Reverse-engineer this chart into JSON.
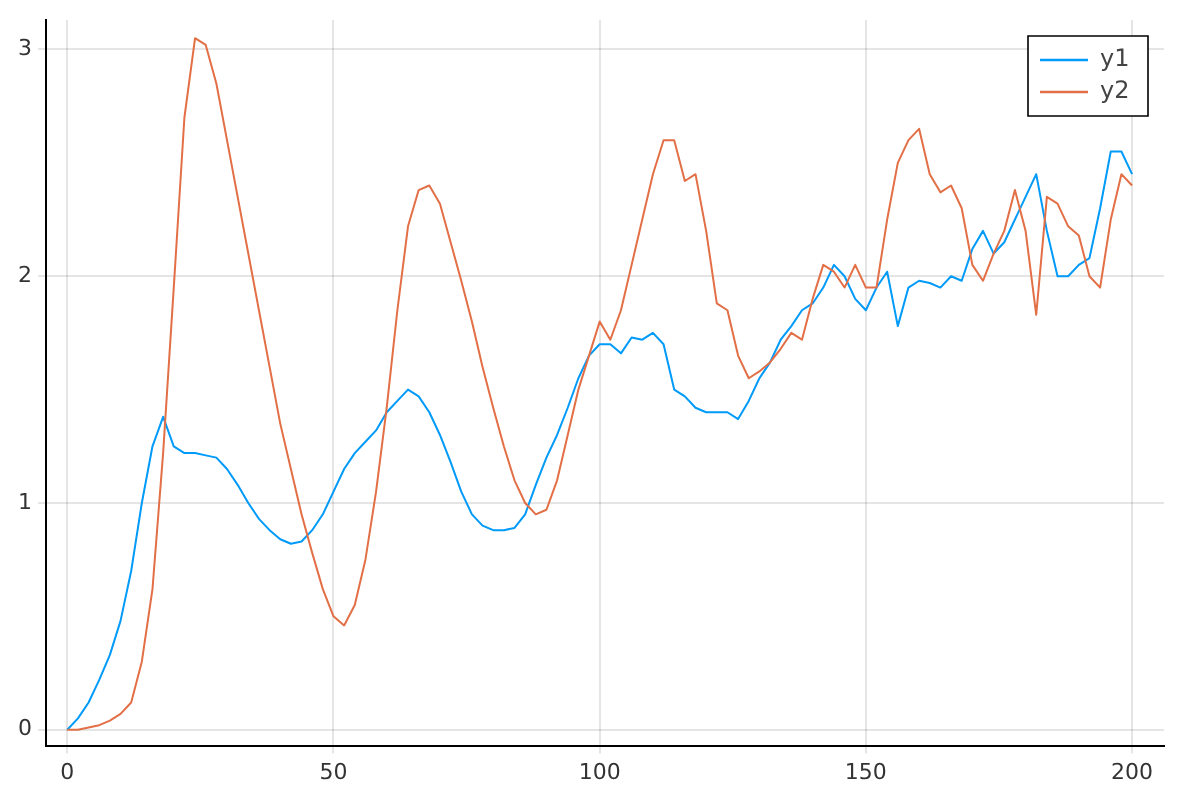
{
  "chart_data": {
    "type": "line",
    "x": [
      0,
      2,
      4,
      6,
      8,
      10,
      12,
      14,
      16,
      18,
      20,
      22,
      24,
      26,
      28,
      30,
      32,
      34,
      36,
      38,
      40,
      42,
      44,
      46,
      48,
      50,
      52,
      54,
      56,
      58,
      60,
      62,
      64,
      66,
      68,
      70,
      72,
      74,
      76,
      78,
      80,
      82,
      84,
      86,
      88,
      90,
      92,
      94,
      96,
      98,
      100,
      102,
      104,
      106,
      108,
      110,
      112,
      114,
      116,
      118,
      120,
      122,
      124,
      126,
      128,
      130,
      132,
      134,
      136,
      138,
      140,
      142,
      144,
      146,
      148,
      150,
      152,
      154,
      156,
      158,
      160,
      162,
      164,
      166,
      168,
      170,
      172,
      174,
      176,
      178,
      180,
      182,
      184,
      186,
      188,
      190,
      192,
      194,
      196,
      198,
      200
    ],
    "series": [
      {
        "name": "y1",
        "color": "#009af9",
        "values": [
          0.0,
          0.05,
          0.12,
          0.22,
          0.33,
          0.48,
          0.7,
          1.0,
          1.25,
          1.38,
          1.25,
          1.22,
          1.22,
          1.21,
          1.2,
          1.15,
          1.08,
          1.0,
          0.93,
          0.88,
          0.84,
          0.82,
          0.83,
          0.88,
          0.95,
          1.05,
          1.15,
          1.22,
          1.27,
          1.32,
          1.4,
          1.45,
          1.5,
          1.47,
          1.4,
          1.3,
          1.18,
          1.05,
          0.95,
          0.9,
          0.88,
          0.88,
          0.89,
          0.95,
          1.08,
          1.2,
          1.3,
          1.42,
          1.55,
          1.65,
          1.7,
          1.7,
          1.66,
          1.73,
          1.72,
          1.75,
          1.7,
          1.5,
          1.47,
          1.42,
          1.4,
          1.4,
          1.4,
          1.37,
          1.45,
          1.55,
          1.62,
          1.72,
          1.78,
          1.85,
          1.88,
          1.95,
          2.05,
          2.0,
          1.9,
          1.85,
          1.95,
          2.02,
          1.78,
          1.95,
          1.98,
          1.97,
          1.95,
          2.0,
          1.98,
          2.12,
          2.2,
          2.1,
          2.15,
          2.25,
          2.35,
          2.45,
          2.2,
          2.0,
          2.0,
          2.05,
          2.08,
          2.3,
          2.55,
          2.55,
          2.45
        ]
      },
      {
        "name": "y2",
        "color": "#e26f46",
        "values": [
          0.0,
          0.0,
          0.01,
          0.02,
          0.04,
          0.07,
          0.12,
          0.3,
          0.62,
          1.22,
          1.95,
          2.7,
          3.05,
          3.02,
          2.85,
          2.6,
          2.35,
          2.1,
          1.85,
          1.6,
          1.35,
          1.15,
          0.95,
          0.78,
          0.62,
          0.5,
          0.46,
          0.55,
          0.75,
          1.05,
          1.42,
          1.85,
          2.22,
          2.38,
          2.4,
          2.32,
          2.15,
          1.98,
          1.8,
          1.6,
          1.42,
          1.25,
          1.1,
          1.0,
          0.95,
          0.97,
          1.1,
          1.3,
          1.5,
          1.65,
          1.8,
          1.72,
          1.85,
          2.05,
          2.25,
          2.45,
          2.6,
          2.6,
          2.42,
          2.45,
          2.2,
          1.88,
          1.85,
          1.65,
          1.55,
          1.58,
          1.62,
          1.68,
          1.75,
          1.72,
          1.9,
          2.05,
          2.02,
          1.95,
          2.05,
          1.95,
          1.95,
          2.25,
          2.5,
          2.6,
          2.65,
          2.45,
          2.37,
          2.4,
          2.3,
          2.05,
          1.98,
          2.1,
          2.2,
          2.38,
          2.2,
          1.83,
          2.35,
          2.32,
          2.22,
          2.18,
          2.0,
          1.95,
          2.25,
          2.45,
          2.4
        ]
      }
    ],
    "xlim": [
      -4,
      206
    ],
    "xticks": [
      0,
      50,
      100,
      150,
      200
    ],
    "ylim": [
      -0.07,
      3.13
    ],
    "yticks": [
      0,
      1,
      2,
      3
    ],
    "grid": true,
    "legend": "top right",
    "line_style": "solid"
  }
}
